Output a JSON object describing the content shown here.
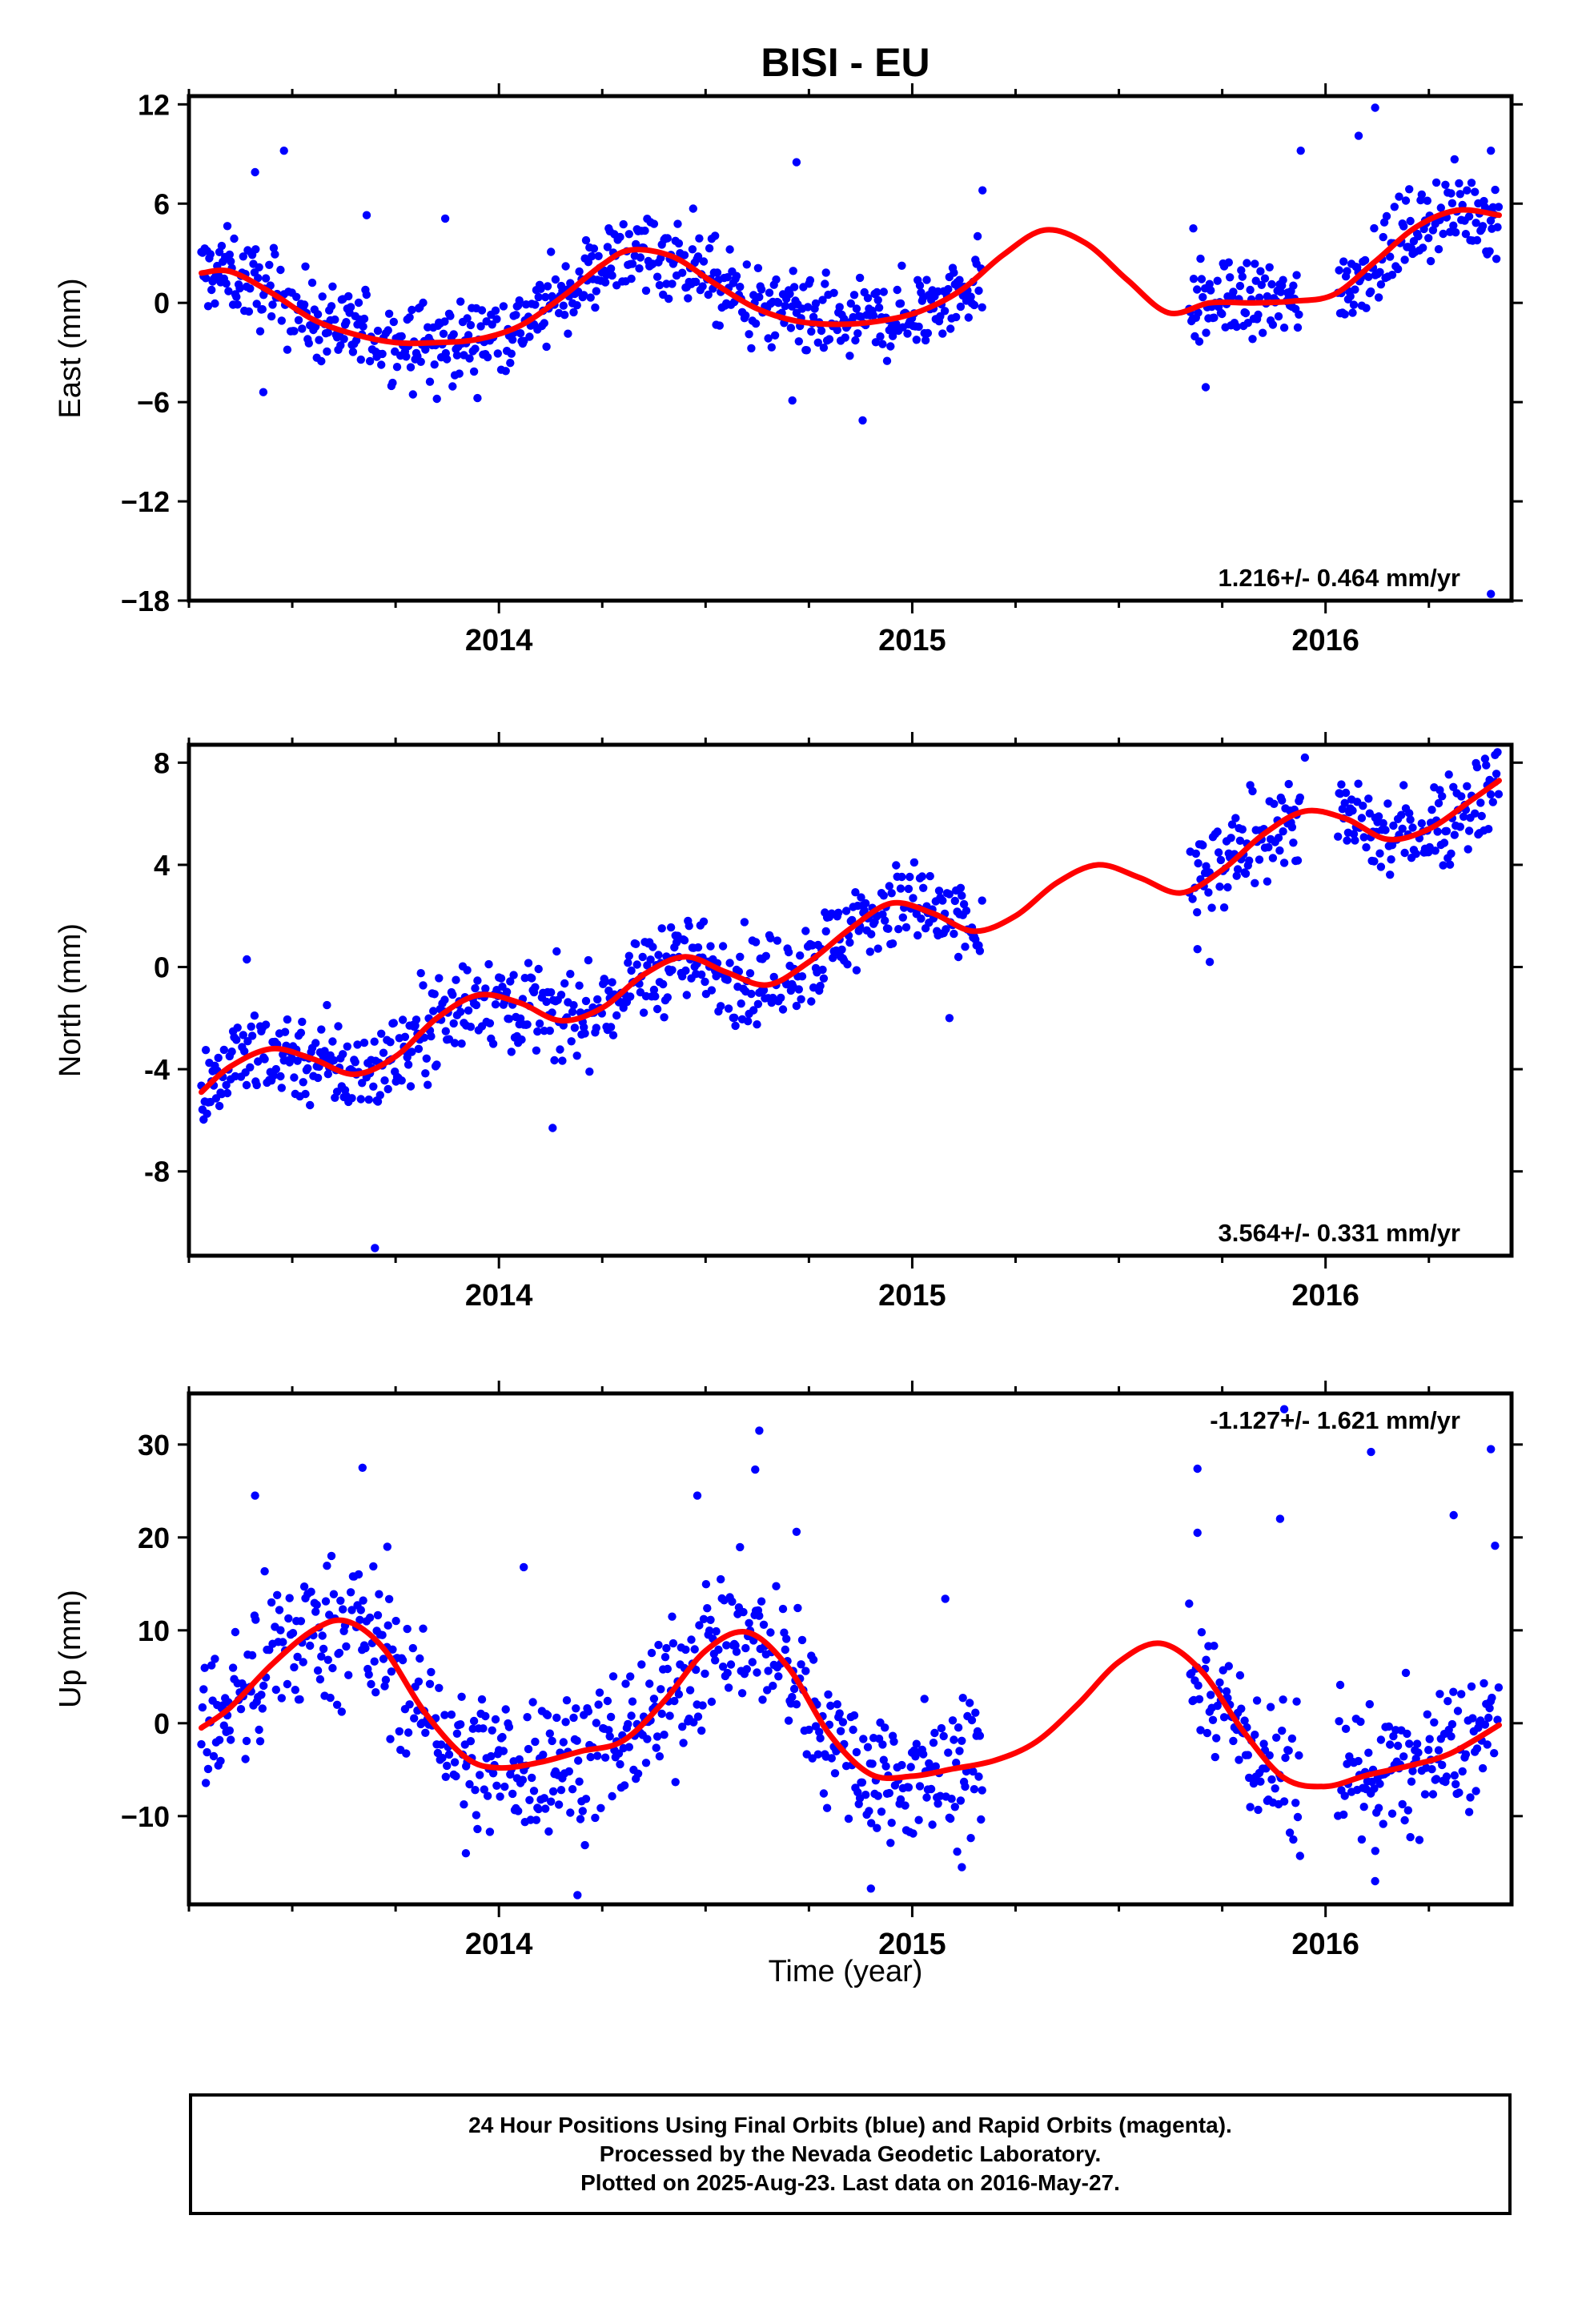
{
  "title": "BISI - EU",
  "xlabel": "Time (year)",
  "footer": {
    "line1": "24 Hour Positions Using Final Orbits (blue) and Rapid Orbits (magenta).",
    "line2": "Processed by the Nevada Geodetic Laboratory.",
    "line3": "Plotted on 2025-Aug-23. Last data on 2016-May-27."
  },
  "colors": {
    "points": "#0000ff",
    "fit": "#ff0000",
    "frame": "#000000"
  },
  "chart_data": [
    {
      "type": "scatter",
      "ylabel": "East (mm)",
      "rate": "1.216+/- 0.464 mm/yr",
      "rate_position": "bottom-right",
      "xlim": [
        2013.25,
        2016.45
      ],
      "ylim": [
        -18,
        12.5
      ],
      "yticks": [
        12,
        6,
        0,
        -6,
        -12,
        -18
      ],
      "ytick_labels": [
        "12",
        "6",
        "0",
        "−6",
        "−12",
        "−18"
      ],
      "xticks": [
        2014,
        2015,
        2016
      ],
      "points": {
        "segments": [
          [
            2013.28,
            2015.17
          ],
          [
            2015.67,
            2015.94
          ],
          [
            2016.03,
            2016.42
          ]
        ],
        "noise": 1.2,
        "outliers": [
          [
            2013.41,
            7.9
          ],
          [
            2013.48,
            9.2
          ],
          [
            2013.43,
            -5.4
          ],
          [
            2013.68,
            5.3
          ],
          [
            2013.87,
            5.1
          ],
          [
            2013.85,
            -5.8
          ],
          [
            2014.47,
            5.7
          ],
          [
            2014.72,
            8.5
          ],
          [
            2014.71,
            -5.9
          ],
          [
            2014.88,
            -7.1
          ],
          [
            2015.17,
            6.8
          ],
          [
            2015.68,
            4.5
          ],
          [
            2015.71,
            -5.1
          ],
          [
            2015.94,
            9.2
          ],
          [
            2016.08,
            10.1
          ],
          [
            2016.12,
            11.8
          ],
          [
            2016.4,
            -17.6
          ],
          [
            2016.4,
            9.2
          ]
        ]
      },
      "fit": {
        "x": [
          2013.28,
          2013.35,
          2013.45,
          2013.55,
          2013.65,
          2013.75,
          2013.85,
          2013.95,
          2014.05,
          2014.15,
          2014.25,
          2014.32,
          2014.42,
          2014.52,
          2014.62,
          2014.72,
          2014.82,
          2014.92,
          2015.02,
          2015.12,
          2015.22,
          2015.32,
          2015.42,
          2015.52,
          2015.62,
          2015.72,
          2015.82,
          2015.92,
          2016.02,
          2016.12,
          2016.22,
          2016.32,
          2016.42
        ],
        "y": [
          1.8,
          1.9,
          0.6,
          -1.0,
          -1.9,
          -2.4,
          -2.4,
          -2.2,
          -1.4,
          0.3,
          2.3,
          3.2,
          2.8,
          1.2,
          -0.3,
          -1.1,
          -1.3,
          -1.1,
          -0.5,
          0.8,
          2.9,
          4.4,
          3.6,
          1.4,
          -0.6,
          0.0,
          0.0,
          0.1,
          0.5,
          2.5,
          4.6,
          5.6,
          5.3
        ]
      }
    },
    {
      "type": "scatter",
      "ylabel": "North (mm)",
      "rate": "3.564+/- 0.331 mm/yr",
      "rate_position": "bottom-right",
      "xlim": [
        2013.25,
        2016.45
      ],
      "ylim": [
        -11.3,
        8.7
      ],
      "yticks": [
        8,
        4,
        0,
        -4,
        -8
      ],
      "ytick_labels": [
        "8",
        "4",
        "0",
        "-4",
        "-8"
      ],
      "xticks": [
        2014,
        2015,
        2016
      ],
      "points": {
        "segments": [
          [
            2013.28,
            2015.17
          ],
          [
            2015.67,
            2015.94
          ],
          [
            2016.03,
            2016.42
          ]
        ],
        "noise": 0.9,
        "outliers": [
          [
            2013.7,
            -11.0
          ],
          [
            2013.39,
            0.3
          ],
          [
            2015.69,
            0.7
          ],
          [
            2015.72,
            0.2
          ],
          [
            2015.09,
            -2.0
          ],
          [
            2014.13,
            -6.3
          ],
          [
            2015.95,
            8.2
          ],
          [
            2016.41,
            8.3
          ]
        ]
      },
      "fit": {
        "x": [
          2013.28,
          2013.35,
          2013.45,
          2013.55,
          2013.65,
          2013.75,
          2013.85,
          2013.95,
          2014.05,
          2014.15,
          2014.25,
          2014.35,
          2014.45,
          2014.55,
          2014.65,
          2014.75,
          2014.85,
          2014.95,
          2015.05,
          2015.15,
          2015.25,
          2015.35,
          2015.45,
          2015.55,
          2015.65,
          2015.75,
          2015.85,
          2015.95,
          2016.05,
          2016.15,
          2016.25,
          2016.35,
          2016.42
        ],
        "y": [
          -4.9,
          -3.9,
          -3.2,
          -3.6,
          -4.2,
          -3.5,
          -2.0,
          -1.1,
          -1.4,
          -2.1,
          -1.6,
          -0.3,
          0.4,
          -0.2,
          -0.7,
          0.2,
          1.5,
          2.5,
          2.1,
          1.4,
          2.0,
          3.3,
          4.0,
          3.5,
          2.9,
          3.8,
          5.2,
          6.1,
          5.8,
          5.0,
          5.4,
          6.5,
          7.3
        ]
      }
    },
    {
      "type": "scatter",
      "ylabel": "Up (mm)",
      "rate": "-1.127+/- 1.621 mm/yr",
      "rate_position": "top-right",
      "xlim": [
        2013.25,
        2016.45
      ],
      "ylim": [
        -19.5,
        35.5
      ],
      "yticks": [
        30,
        20,
        10,
        0,
        -10
      ],
      "ytick_labels": [
        "30",
        "20",
        "10",
        "0",
        "−10"
      ],
      "xticks": [
        2014,
        2015,
        2016
      ],
      "points": {
        "segments": [
          [
            2013.28,
            2015.17
          ],
          [
            2015.67,
            2015.94
          ],
          [
            2016.03,
            2016.42
          ]
        ],
        "noise": 3.8,
        "outliers": [
          [
            2013.41,
            24.5
          ],
          [
            2013.67,
            27.5
          ],
          [
            2013.73,
            19.0
          ],
          [
            2014.06,
            16.8
          ],
          [
            2014.48,
            24.5
          ],
          [
            2014.63,
            31.5
          ],
          [
            2014.62,
            27.3
          ],
          [
            2014.72,
            20.6
          ],
          [
            2014.9,
            -17.8
          ],
          [
            2015.08,
            13.4
          ],
          [
            2015.12,
            -15.5
          ],
          [
            2015.69,
            27.4
          ],
          [
            2015.69,
            20.5
          ],
          [
            2015.9,
            33.8
          ],
          [
            2015.89,
            22.0
          ],
          [
            2016.11,
            29.2
          ],
          [
            2016.31,
            22.4
          ],
          [
            2016.4,
            29.5
          ],
          [
            2016.41,
            19.1
          ],
          [
            2016.12,
            -17.0
          ],
          [
            2014.19,
            -18.5
          ],
          [
            2013.92,
            -14.0
          ]
        ]
      },
      "fit": {
        "x": [
          2013.28,
          2013.35,
          2013.45,
          2013.55,
          2013.63,
          2013.72,
          2013.82,
          2013.92,
          2014.0,
          2014.1,
          2014.2,
          2014.3,
          2014.4,
          2014.5,
          2014.6,
          2014.7,
          2014.8,
          2014.9,
          2015.0,
          2015.1,
          2015.2,
          2015.3,
          2015.4,
          2015.5,
          2015.6,
          2015.7,
          2015.8,
          2015.9,
          2016.0,
          2016.1,
          2016.2,
          2016.3,
          2016.42
        ],
        "y": [
          -0.5,
          1.7,
          6.3,
          10.0,
          11.0,
          8.1,
          1.2,
          -3.7,
          -4.8,
          -4.2,
          -3.0,
          -1.9,
          2.4,
          7.8,
          9.8,
          6.0,
          -1.2,
          -5.5,
          -5.7,
          -4.9,
          -4.0,
          -2.0,
          2.0,
          6.6,
          8.6,
          5.6,
          -0.8,
          -5.9,
          -6.8,
          -5.6,
          -4.6,
          -3.3,
          -0.2
        ]
      }
    }
  ]
}
